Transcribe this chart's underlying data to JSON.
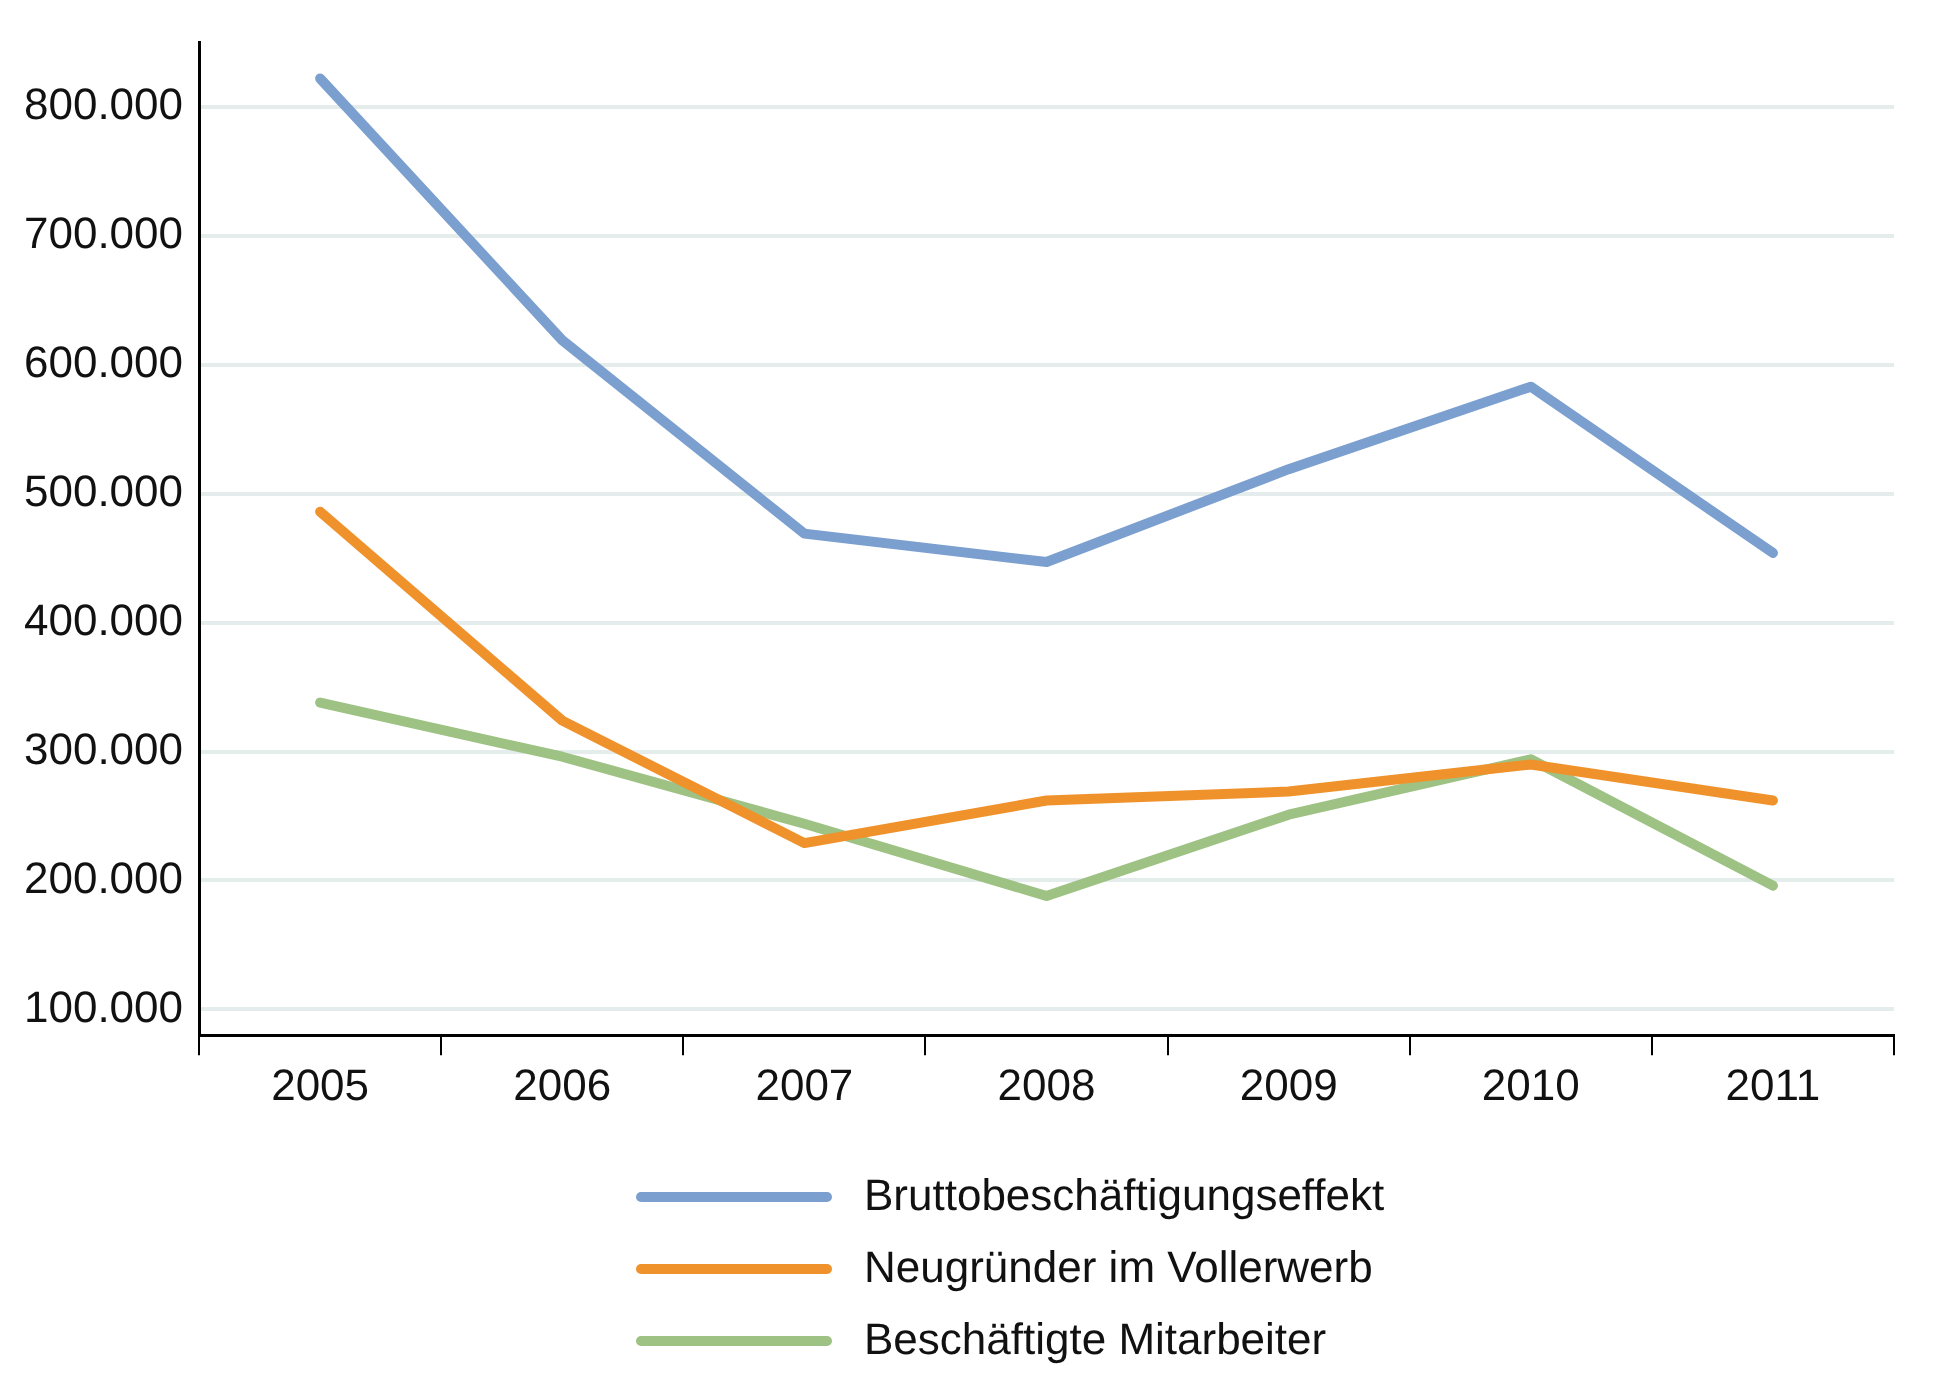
{
  "chart_data": {
    "type": "line",
    "categories": [
      "2005",
      "2006",
      "2007",
      "2008",
      "2009",
      "2010",
      "2011"
    ],
    "series": [
      {
        "name": "Bruttobeschäftigungseffekt",
        "color": "#7b9fcf",
        "values": [
          822000,
          619000,
          469000,
          447000,
          519000,
          583000,
          454000
        ]
      },
      {
        "name": "Neugründer im Vollerwerb",
        "color": "#f0922b",
        "values": [
          486000,
          324000,
          229000,
          262000,
          269000,
          290000,
          262000
        ]
      },
      {
        "name": "Beschäftigte Mitarbeiter",
        "color": "#9dc283",
        "values": [
          338000,
          296000,
          244000,
          188000,
          251000,
          294000,
          196000
        ]
      }
    ],
    "ylim": [
      80000,
      850000
    ],
    "yticks": [
      {
        "value": 100000,
        "label": "100.000"
      },
      {
        "value": 200000,
        "label": "200.000"
      },
      {
        "value": 300000,
        "label": "300.000"
      },
      {
        "value": 400000,
        "label": "400.000"
      },
      {
        "value": 500000,
        "label": "500.000"
      },
      {
        "value": 600000,
        "label": "600.000"
      },
      {
        "value": 700000,
        "label": "700.000"
      },
      {
        "value": 800000,
        "label": "800.000"
      }
    ],
    "grid": "y",
    "legend": "bottom",
    "marker": "none",
    "line_style": "solid"
  }
}
